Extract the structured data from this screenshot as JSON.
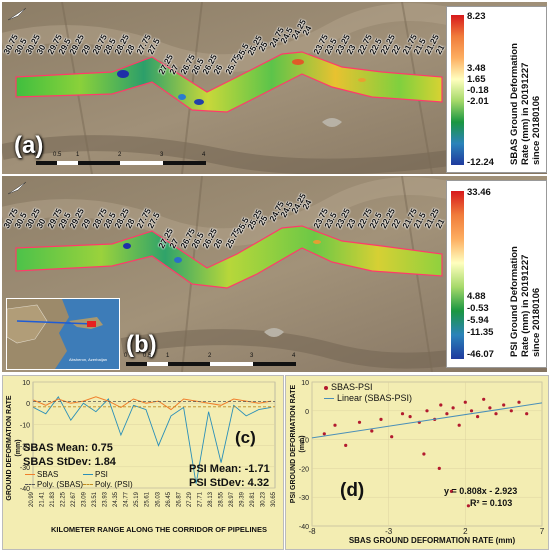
{
  "panel_a": {
    "tag": "(a)",
    "km_labels": [
      "30.75",
      "30.5",
      "30.25",
      "30",
      "29.75",
      "29.5",
      "29.25",
      "29",
      "28.75",
      "28.5",
      "28.25",
      "28",
      "27.75",
      "27.5",
      "27.25",
      "27",
      "26.75",
      "26.5",
      "26.25",
      "26",
      "25.75",
      "25.5",
      "25.25",
      "25",
      "24.75",
      "24.5",
      "24.25",
      "24",
      "23.75",
      "23.5",
      "23.25",
      "23",
      "22.75",
      "22.5",
      "22.25",
      "22",
      "21.75",
      "21.5",
      "21.25",
      "21"
    ],
    "legend": {
      "title": "SBAS Ground Deformation\nRate (mm) in 20191227\nsince 20180106",
      "ticks": [
        "8.23",
        "3.48",
        "1.65",
        "-0.18",
        "-2.01",
        "-12.24"
      ]
    },
    "scale_ticks": [
      "0",
      "0.5",
      "1",
      "2",
      "3",
      "4"
    ]
  },
  "panel_b": {
    "tag": "(b)",
    "km_labels": [
      "30.75",
      "30.5",
      "30.25",
      "30",
      "29.75",
      "29.5",
      "29.25",
      "29",
      "28.75",
      "28.5",
      "28.25",
      "28",
      "27.75",
      "27.5",
      "27.25",
      "27",
      "26.75",
      "26.5",
      "26.25",
      "26",
      "25.75",
      "25.5",
      "25.25",
      "25",
      "24.75",
      "24.5",
      "24.25",
      "24",
      "23.75",
      "23.5",
      "23.25",
      "23",
      "22.75",
      "22.5",
      "22.25",
      "22",
      "21.75",
      "21.5",
      "21.25",
      "21"
    ],
    "legend": {
      "title": "PSI Ground Deformation\nRate (mm) in 20191227\nsince 20180106",
      "ticks": [
        "33.46",
        "4.88",
        "-0.53",
        "-5.94",
        "-11.35",
        "-46.07"
      ]
    },
    "scale_ticks": [
      "0",
      "0.5",
      "1",
      "2",
      "3",
      "4"
    ],
    "inset_text": "Absheron, Azerbaijan"
  },
  "panel_c": {
    "tag": "(c)",
    "ylabel": "GROUND DEFORMATION RATE (mm)",
    "xlabel": "KILOMETER RANGE ALONG THE CORRIDOR OF PIPELINES",
    "yticks": [
      "10",
      "0",
      "-10",
      "-20",
      "-30",
      "-40"
    ],
    "xticks": [
      "20.99",
      "21.41",
      "21.83",
      "22.25",
      "22.67",
      "23.09",
      "23.51",
      "23.93",
      "24.35",
      "24.77",
      "25.19",
      "25.61",
      "26.03",
      "26.45",
      "26.87",
      "27.29",
      "27.71",
      "28.13",
      "28.55",
      "28.97",
      "29.39",
      "29.81",
      "30.23",
      "30.65"
    ],
    "sbas_mean": "SBAS Mean: 0.75",
    "sbas_std": "SBAS StDev: 1.84",
    "psi_mean": "PSI Mean: -1.71",
    "psi_std": "PSI StDev: 4.32",
    "legend": [
      "SBAS",
      "PSI",
      "Poly. (SBAS)",
      "Poly. (PSI)"
    ]
  },
  "panel_d": {
    "tag": "(d)",
    "ylabel": "PSI GROUND DEFORMATION RATE (mm)",
    "xlabel": "SBAS GROUND DEFORMATION RATE (mm)",
    "xticks": [
      "-8",
      "-3",
      "2",
      "7"
    ],
    "yticks": [
      "10",
      "0",
      "-10",
      "-20",
      "-30",
      "-40"
    ],
    "legend": [
      "SBAS-PSI",
      "Linear (SBAS-PSI)"
    ],
    "equation": "y = 0.808x - 2.923",
    "r2": "R² = 0.103"
  },
  "colors": {
    "sbas_line": "#f07f2a",
    "psi_line": "#2a8fb8",
    "scatter": "#b21a2e",
    "trend": "#4a8fb8",
    "chart_bg": "#f3edb2"
  },
  "chart_data": [
    {
      "type": "line",
      "title": "",
      "xlabel": "KILOMETER RANGE ALONG THE CORRIDOR OF PIPELINES",
      "ylabel": "GROUND DEFORMATION RATE (mm)",
      "ylim": [
        -40,
        10
      ],
      "xlim": [
        20.99,
        30.65
      ],
      "series": [
        {
          "name": "SBAS",
          "x": [
            21.0,
            21.5,
            22.0,
            22.5,
            23.0,
            23.5,
            24.0,
            24.5,
            25.0,
            25.5,
            26.0,
            26.5,
            27.0,
            27.5,
            28.0,
            28.5,
            29.0,
            29.5,
            30.0,
            30.5
          ],
          "y": [
            1.5,
            -1,
            2,
            0,
            1,
            3,
            1,
            -2,
            2,
            0,
            1,
            -3,
            2,
            1,
            0,
            -1,
            2,
            1,
            0,
            1
          ]
        },
        {
          "name": "PSI",
          "x": [
            21.0,
            21.5,
            22.0,
            22.5,
            23.0,
            23.5,
            24.0,
            24.5,
            25.0,
            25.5,
            26.0,
            26.5,
            27.0,
            27.5,
            28.0,
            28.5,
            29.0,
            29.5,
            30.0,
            30.5
          ],
          "y": [
            -2,
            -5,
            3,
            -8,
            0,
            -4,
            2,
            -15,
            -1,
            -3,
            -20,
            -6,
            -2,
            -38,
            -4,
            -28,
            -1,
            -6,
            -3,
            -2
          ]
        }
      ]
    },
    {
      "type": "scatter",
      "title": "",
      "xlabel": "SBAS GROUND DEFORMATION RATE (mm)",
      "ylabel": "PSI GROUND DEFORMATION RATE (mm)",
      "xlim": [
        -8,
        7
      ],
      "ylim": [
        -40,
        10
      ],
      "series": [
        {
          "name": "SBAS-PSI",
          "x": [
            -7.2,
            -6.5,
            -5.8,
            -4.9,
            -4.1,
            -3.5,
            -2.8,
            -2.1,
            -1.6,
            -1.0,
            -0.5,
            0.0,
            0.4,
            0.8,
            1.2,
            1.6,
            2.0,
            2.4,
            2.8,
            3.2,
            3.6,
            4.0,
            4.5,
            5.0,
            5.5,
            6.0,
            0.3,
            1.1,
            -0.7,
            2.2
          ],
          "y": [
            -8,
            -5,
            -12,
            -4,
            -7,
            -3,
            -9,
            -1,
            -2,
            -4,
            0,
            -3,
            2,
            -1,
            1,
            -5,
            3,
            0,
            -2,
            4,
            1,
            -1,
            2,
            0,
            3,
            -1,
            -20,
            -28,
            -15,
            -33
          ]
        }
      ],
      "trendline": {
        "name": "Linear (SBAS-PSI)",
        "slope": 0.808,
        "intercept": -2.923,
        "r2": 0.103
      }
    }
  ]
}
